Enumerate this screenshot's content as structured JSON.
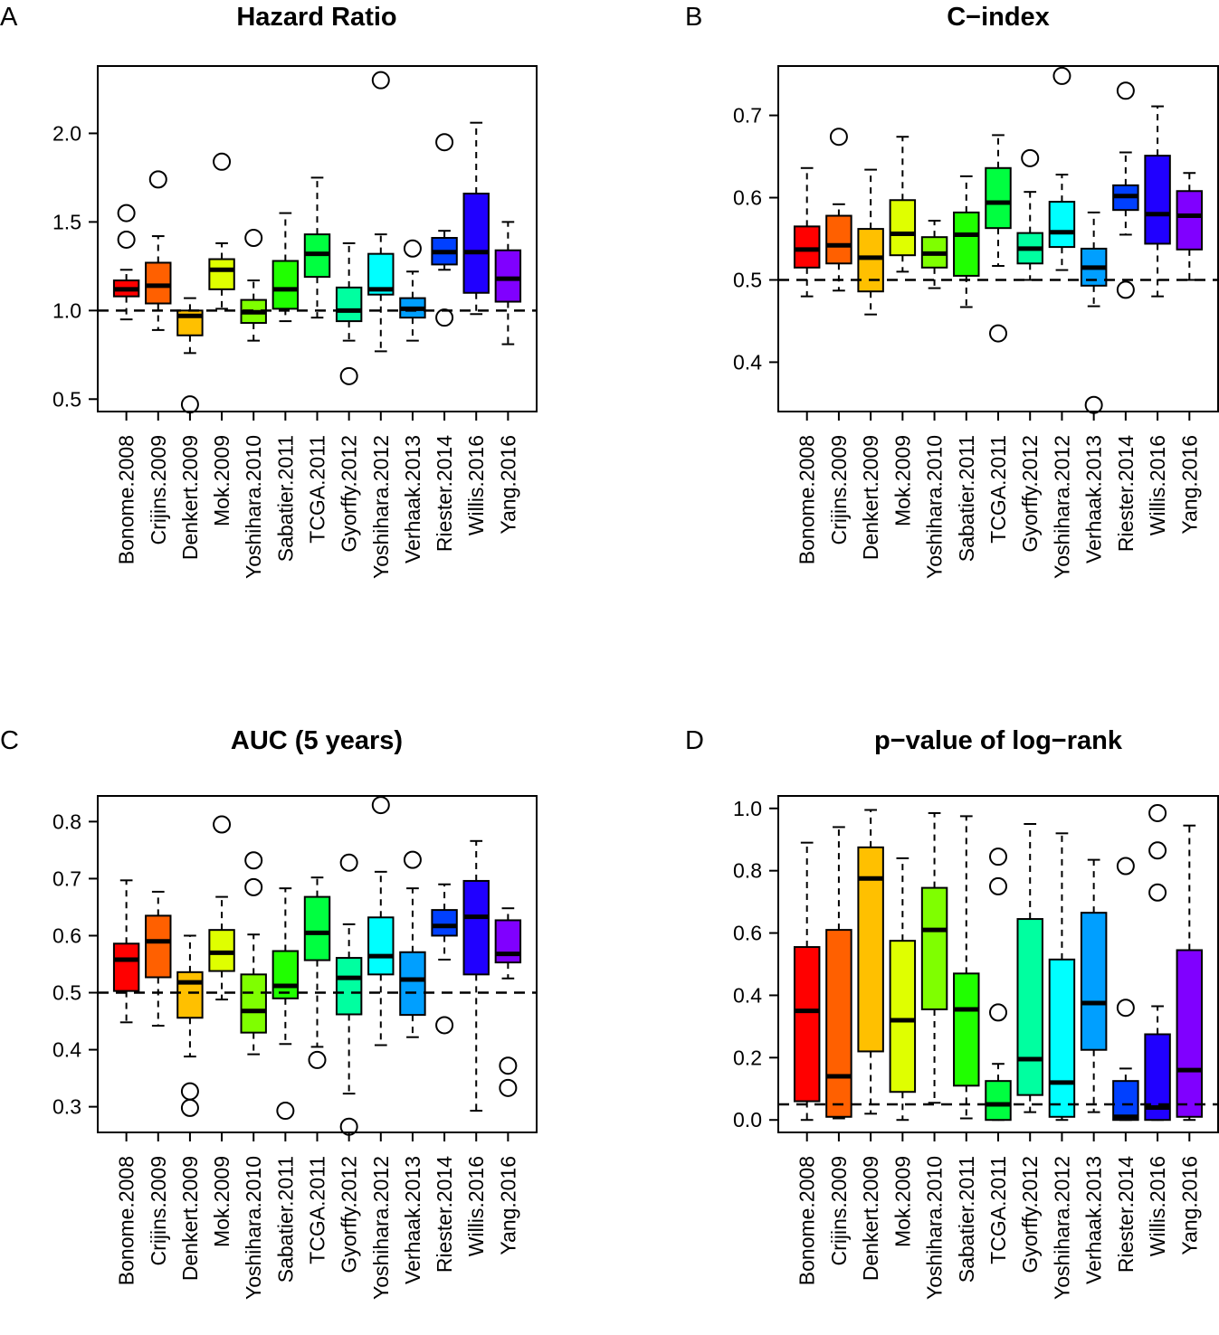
{
  "figure": {
    "categories": [
      "Bonome.2008",
      "Crijins.2009",
      "Denkert.2009",
      "Mok.2009",
      "Yoshihara.2010",
      "Sabatier.2011",
      "TCGA.2011",
      "Gyorffy.2012",
      "Yoshihara.2012",
      "Verhaak.2013",
      "Riester.2014",
      "Willis.2016",
      "Yang.2016"
    ],
    "colors": [
      "#FF0000",
      "#FF6000",
      "#FFC000",
      "#DFFF00",
      "#7FFF00",
      "#20FF00",
      "#00FF40",
      "#00FFA0",
      "#00FFFF",
      "#009FFF",
      "#0040FF",
      "#2000FF",
      "#8000FF",
      "#DF00FF"
    ]
  },
  "chart_data": [
    {
      "type": "boxplot",
      "panel_letter": "A",
      "title": "Hazard Ratio",
      "xlabel": "",
      "ylabel": "",
      "ylim": [
        0.43,
        2.38
      ],
      "yticks": [
        0.5,
        1.0,
        1.5,
        2.0
      ],
      "ytick_labels": [
        "0.5",
        "1.0",
        "1.5",
        "2.0"
      ],
      "reference_line": 1.0,
      "categories": [
        "Bonome.2008",
        "Crijins.2009",
        "Denkert.2009",
        "Mok.2009",
        "Yoshihara.2010",
        "Sabatier.2011",
        "TCGA.2011",
        "Gyorffy.2012",
        "Yoshihara.2012",
        "Verhaak.2013",
        "Riester.2014",
        "Willis.2016",
        "Yang.2016"
      ],
      "boxes": [
        {
          "whisker_low": 0.95,
          "q1": 1.08,
          "median": 1.12,
          "q3": 1.17,
          "whisker_high": 1.23,
          "outliers": [
            1.4,
            1.55
          ]
        },
        {
          "whisker_low": 0.89,
          "q1": 1.04,
          "median": 1.14,
          "q3": 1.27,
          "whisker_high": 1.42,
          "outliers": [
            1.74
          ]
        },
        {
          "whisker_low": 0.76,
          "q1": 0.86,
          "median": 0.97,
          "q3": 1.0,
          "whisker_high": 1.07,
          "outliers": [
            0.47
          ]
        },
        {
          "whisker_low": 1.01,
          "q1": 1.12,
          "median": 1.23,
          "q3": 1.29,
          "whisker_high": 1.38,
          "outliers": [
            1.84
          ]
        },
        {
          "whisker_low": 0.83,
          "q1": 0.93,
          "median": 0.99,
          "q3": 1.06,
          "whisker_high": 1.17,
          "outliers": [
            1.41
          ]
        },
        {
          "whisker_low": 0.94,
          "q1": 1.01,
          "median": 1.12,
          "q3": 1.28,
          "whisker_high": 1.55,
          "outliers": []
        },
        {
          "whisker_low": 0.96,
          "q1": 1.19,
          "median": 1.32,
          "q3": 1.43,
          "whisker_high": 1.75,
          "outliers": []
        },
        {
          "whisker_low": 0.83,
          "q1": 0.94,
          "median": 1.0,
          "q3": 1.13,
          "whisker_high": 1.38,
          "outliers": [
            0.63
          ]
        },
        {
          "whisker_low": 0.77,
          "q1": 1.09,
          "median": 1.12,
          "q3": 1.32,
          "whisker_high": 1.43,
          "outliers": [
            2.3
          ]
        },
        {
          "whisker_low": 0.83,
          "q1": 0.96,
          "median": 1.01,
          "q3": 1.07,
          "whisker_high": 1.22,
          "outliers": [
            1.35
          ]
        },
        {
          "whisker_low": 1.23,
          "q1": 1.26,
          "median": 1.33,
          "q3": 1.41,
          "whisker_high": 1.45,
          "outliers": [
            0.96,
            1.95
          ]
        },
        {
          "whisker_low": 0.98,
          "q1": 1.1,
          "median": 1.33,
          "q3": 1.66,
          "whisker_high": 2.06,
          "outliers": []
        },
        {
          "whisker_low": 0.81,
          "q1": 1.05,
          "median": 1.18,
          "q3": 1.34,
          "whisker_high": 1.5,
          "outliers": []
        }
      ]
    },
    {
      "type": "boxplot",
      "panel_letter": "B",
      "title": "C−index",
      "xlabel": "",
      "ylabel": "",
      "ylim": [
        0.34,
        0.76
      ],
      "yticks": [
        0.4,
        0.5,
        0.6,
        0.7
      ],
      "ytick_labels": [
        "0.4",
        "0.5",
        "0.6",
        "0.7"
      ],
      "reference_line": 0.5,
      "categories": [
        "Bonome.2008",
        "Crijins.2009",
        "Denkert.2009",
        "Mok.2009",
        "Yoshihara.2010",
        "Sabatier.2011",
        "TCGA.2011",
        "Gyorffy.2012",
        "Yoshihara.2012",
        "Verhaak.2013",
        "Riester.2014",
        "Willis.2016",
        "Yang.2016"
      ],
      "boxes": [
        {
          "whisker_low": 0.48,
          "q1": 0.515,
          "median": 0.537,
          "q3": 0.565,
          "whisker_high": 0.636,
          "outliers": []
        },
        {
          "whisker_low": 0.487,
          "q1": 0.52,
          "median": 0.542,
          "q3": 0.578,
          "whisker_high": 0.592,
          "outliers": [
            0.674
          ]
        },
        {
          "whisker_low": 0.458,
          "q1": 0.486,
          "median": 0.527,
          "q3": 0.562,
          "whisker_high": 0.634,
          "outliers": []
        },
        {
          "whisker_low": 0.51,
          "q1": 0.53,
          "median": 0.556,
          "q3": 0.597,
          "whisker_high": 0.674,
          "outliers": []
        },
        {
          "whisker_low": 0.49,
          "q1": 0.515,
          "median": 0.532,
          "q3": 0.552,
          "whisker_high": 0.572,
          "outliers": []
        },
        {
          "whisker_low": 0.467,
          "q1": 0.505,
          "median": 0.555,
          "q3": 0.582,
          "whisker_high": 0.626,
          "outliers": []
        },
        {
          "whisker_low": 0.517,
          "q1": 0.563,
          "median": 0.594,
          "q3": 0.636,
          "whisker_high": 0.676,
          "outliers": [
            0.435
          ]
        },
        {
          "whisker_low": 0.5,
          "q1": 0.52,
          "median": 0.538,
          "q3": 0.557,
          "whisker_high": 0.607,
          "outliers": [
            0.648
          ]
        },
        {
          "whisker_low": 0.512,
          "q1": 0.54,
          "median": 0.558,
          "q3": 0.595,
          "whisker_high": 0.628,
          "outliers": [
            0.748
          ]
        },
        {
          "whisker_low": 0.468,
          "q1": 0.493,
          "median": 0.515,
          "q3": 0.538,
          "whisker_high": 0.582,
          "outliers": [
            0.348
          ]
        },
        {
          "whisker_low": 0.555,
          "q1": 0.585,
          "median": 0.602,
          "q3": 0.615,
          "whisker_high": 0.655,
          "outliers": [
            0.488,
            0.73
          ]
        },
        {
          "whisker_low": 0.48,
          "q1": 0.544,
          "median": 0.58,
          "q3": 0.651,
          "whisker_high": 0.711,
          "outliers": []
        },
        {
          "whisker_low": 0.5,
          "q1": 0.537,
          "median": 0.578,
          "q3": 0.608,
          "whisker_high": 0.63,
          "outliers": []
        }
      ]
    },
    {
      "type": "boxplot",
      "panel_letter": "C",
      "title": "AUC (5 years)",
      "xlabel": "",
      "ylabel": "",
      "ylim": [
        0.255,
        0.845
      ],
      "yticks": [
        0.3,
        0.4,
        0.5,
        0.6,
        0.7,
        0.8
      ],
      "ytick_labels": [
        "0.3",
        "0.4",
        "0.5",
        "0.6",
        "0.7",
        "0.8"
      ],
      "reference_line": 0.5,
      "categories": [
        "Bonome.2008",
        "Crijins.2009",
        "Denkert.2009",
        "Mok.2009",
        "Yoshihara.2010",
        "Sabatier.2011",
        "TCGA.2011",
        "Gyorffy.2012",
        "Yoshihara.2012",
        "Verhaak.2013",
        "Riester.2014",
        "Willis.2016",
        "Yang.2016"
      ],
      "boxes": [
        {
          "whisker_low": 0.448,
          "q1": 0.503,
          "median": 0.558,
          "q3": 0.586,
          "whisker_high": 0.697,
          "outliers": []
        },
        {
          "whisker_low": 0.442,
          "q1": 0.527,
          "median": 0.59,
          "q3": 0.635,
          "whisker_high": 0.677,
          "outliers": []
        },
        {
          "whisker_low": 0.388,
          "q1": 0.456,
          "median": 0.518,
          "q3": 0.536,
          "whisker_high": 0.6,
          "outliers": [
            0.298,
            0.327
          ]
        },
        {
          "whisker_low": 0.488,
          "q1": 0.538,
          "median": 0.57,
          "q3": 0.61,
          "whisker_high": 0.668,
          "outliers": [
            0.795
          ]
        },
        {
          "whisker_low": 0.392,
          "q1": 0.43,
          "median": 0.468,
          "q3": 0.532,
          "whisker_high": 0.602,
          "outliers": [
            0.685,
            0.732
          ]
        },
        {
          "whisker_low": 0.41,
          "q1": 0.49,
          "median": 0.512,
          "q3": 0.573,
          "whisker_high": 0.683,
          "outliers": [
            0.293
          ]
        },
        {
          "whisker_low": 0.405,
          "q1": 0.557,
          "median": 0.605,
          "q3": 0.668,
          "whisker_high": 0.702,
          "outliers": [
            0.382
          ]
        },
        {
          "whisker_low": 0.323,
          "q1": 0.462,
          "median": 0.526,
          "q3": 0.561,
          "whisker_high": 0.62,
          "outliers": [
            0.265,
            0.728
          ]
        },
        {
          "whisker_low": 0.408,
          "q1": 0.532,
          "median": 0.564,
          "q3": 0.632,
          "whisker_high": 0.712,
          "outliers": [
            0.829
          ]
        },
        {
          "whisker_low": 0.422,
          "q1": 0.461,
          "median": 0.523,
          "q3": 0.571,
          "whisker_high": 0.683,
          "outliers": [
            0.733
          ]
        },
        {
          "whisker_low": 0.558,
          "q1": 0.6,
          "median": 0.617,
          "q3": 0.645,
          "whisker_high": 0.69,
          "outliers": [
            0.443
          ]
        },
        {
          "whisker_low": 0.293,
          "q1": 0.532,
          "median": 0.633,
          "q3": 0.696,
          "whisker_high": 0.766,
          "outliers": []
        },
        {
          "whisker_low": 0.525,
          "q1": 0.553,
          "median": 0.568,
          "q3": 0.627,
          "whisker_high": 0.648,
          "outliers": [
            0.333,
            0.372
          ]
        }
      ]
    },
    {
      "type": "boxplot",
      "panel_letter": "D",
      "title": "p−value of log−rank",
      "xlabel": "",
      "ylabel": "",
      "ylim": [
        -0.04,
        1.04
      ],
      "yticks": [
        0.0,
        0.2,
        0.4,
        0.6,
        0.8,
        1.0
      ],
      "ytick_labels": [
        "0.0",
        "0.2",
        "0.4",
        "0.6",
        "0.8",
        "1.0"
      ],
      "reference_line": 0.05,
      "categories": [
        "Bonome.2008",
        "Crijins.2009",
        "Denkert.2009",
        "Mok.2009",
        "Yoshihara.2010",
        "Sabatier.2011",
        "TCGA.2011",
        "Gyorffy.2012",
        "Yoshihara.2012",
        "Verhaak.2013",
        "Riester.2014",
        "Willis.2016",
        "Yang.2016"
      ],
      "boxes": [
        {
          "whisker_low": 0.0,
          "q1": 0.06,
          "median": 0.35,
          "q3": 0.555,
          "whisker_high": 0.89,
          "outliers": []
        },
        {
          "whisker_low": 0.005,
          "q1": 0.01,
          "median": 0.14,
          "q3": 0.61,
          "whisker_high": 0.94,
          "outliers": []
        },
        {
          "whisker_low": 0.02,
          "q1": 0.22,
          "median": 0.775,
          "q3": 0.875,
          "whisker_high": 0.995,
          "outliers": []
        },
        {
          "whisker_low": 0.0,
          "q1": 0.09,
          "median": 0.32,
          "q3": 0.575,
          "whisker_high": 0.84,
          "outliers": []
        },
        {
          "whisker_low": 0.055,
          "q1": 0.355,
          "median": 0.61,
          "q3": 0.745,
          "whisker_high": 0.985,
          "outliers": []
        },
        {
          "whisker_low": 0.005,
          "q1": 0.11,
          "median": 0.355,
          "q3": 0.47,
          "whisker_high": 0.975,
          "outliers": []
        },
        {
          "whisker_low": 0.0,
          "q1": 0.0,
          "median": 0.05,
          "q3": 0.125,
          "whisker_high": 0.18,
          "outliers": [
            0.345,
            0.75,
            0.845
          ]
        },
        {
          "whisker_low": 0.025,
          "q1": 0.08,
          "median": 0.195,
          "q3": 0.645,
          "whisker_high": 0.95,
          "outliers": []
        },
        {
          "whisker_low": 0.0,
          "q1": 0.01,
          "median": 0.12,
          "q3": 0.515,
          "whisker_high": 0.92,
          "outliers": []
        },
        {
          "whisker_low": 0.025,
          "q1": 0.225,
          "median": 0.375,
          "q3": 0.665,
          "whisker_high": 0.835,
          "outliers": []
        },
        {
          "whisker_low": 0.0,
          "q1": 0.0,
          "median": 0.01,
          "q3": 0.125,
          "whisker_high": 0.165,
          "outliers": [
            0.36,
            0.815
          ]
        },
        {
          "whisker_low": 0.0,
          "q1": 0.0,
          "median": 0.04,
          "q3": 0.275,
          "whisker_high": 0.365,
          "outliers": [
            0.73,
            0.865,
            0.985
          ]
        },
        {
          "whisker_low": 0.0,
          "q1": 0.01,
          "median": 0.16,
          "q3": 0.545,
          "whisker_high": 0.945,
          "outliers": []
        }
      ]
    }
  ]
}
